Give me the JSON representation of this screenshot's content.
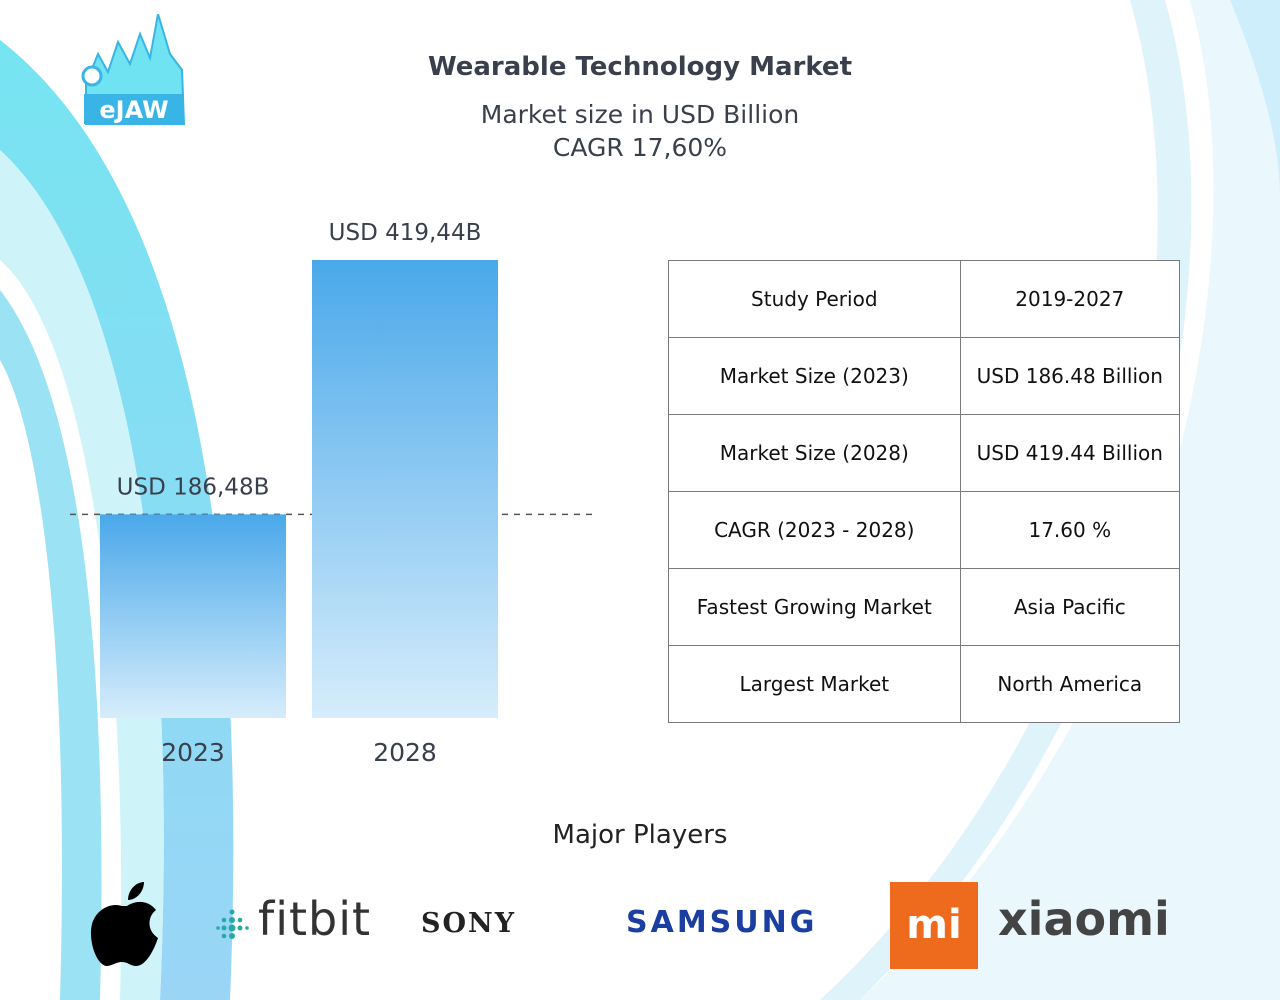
{
  "header": {
    "title": "Wearable Technology Market",
    "subtitle": "Market size in USD Billion",
    "cagr_label": "CAGR 17,60%"
  },
  "chart_data": {
    "type": "bar",
    "categories": [
      "2023",
      "2028"
    ],
    "values": [
      186.48,
      419.44
    ],
    "data_labels": [
      "USD 186,48B",
      "USD 419,44B"
    ],
    "title": "Wearable Technology Market",
    "ylabel": "Market size in USD Billion",
    "xlabel": "",
    "ylim": [
      0,
      419.44
    ],
    "grid": false,
    "reference_line": 186.48,
    "colors": {
      "bar_top": "#4aa8ea",
      "bar_bottom": "#d6edfb",
      "dash": "#555555"
    }
  },
  "summary_table": {
    "rows": [
      {
        "key": "Study Period",
        "value": "2019-2027"
      },
      {
        "key": "Market Size (2023)",
        "value": "USD 186.48 Billion"
      },
      {
        "key": "Market Size (2028)",
        "value": "USD 419.44 Billion"
      },
      {
        "key": "CAGR (2023 - 2028)",
        "value": "17.60 %"
      },
      {
        "key": "Fastest Growing Market",
        "value": "Asia Pacific"
      },
      {
        "key": "Largest Market",
        "value": "North America"
      }
    ]
  },
  "players": {
    "title": "Major Players",
    "logos": [
      {
        "name": "apple-logo",
        "text": ""
      },
      {
        "name": "fitbit-logo",
        "text": "fitbit"
      },
      {
        "name": "sony-logo",
        "text": "SONY"
      },
      {
        "name": "samsung-logo",
        "text": "SAMSUNG"
      },
      {
        "name": "xiaomi-logo",
        "text": "xiaomi",
        "mark": "mi"
      }
    ]
  },
  "brand": {
    "logo_icon": "shark-jaw-icon",
    "logo_text": "eJAW"
  },
  "colors": {
    "accent_cyan": "#6fe3f2",
    "accent_blue": "#3a8de0",
    "mi_orange": "#ee6b1d",
    "samsung_blue": "#1a3fa0"
  }
}
